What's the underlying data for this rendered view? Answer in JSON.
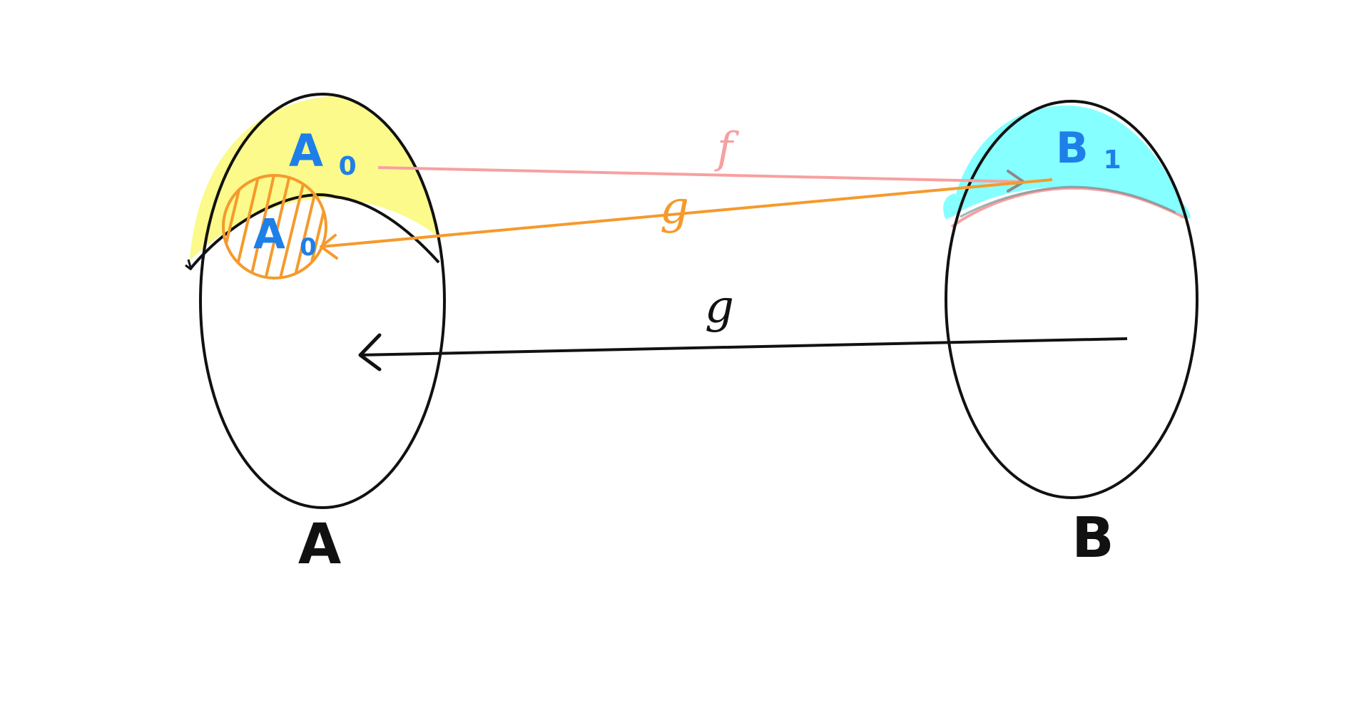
{
  "sets": {
    "A": {
      "label": "A",
      "subset_label": "A",
      "subset_subscript": "0",
      "inner_label": "A",
      "inner_subscript": "0"
    },
    "B": {
      "label": "B",
      "subset_label": "B",
      "subset_subscript": "1"
    }
  },
  "maps": {
    "f": {
      "label": "f",
      "color": "#f7a0a0"
    },
    "g_subset": {
      "label": "g",
      "color": "#f59a2c"
    },
    "g_main": {
      "label": "g",
      "color": "#111111"
    }
  },
  "colors": {
    "yellow_region": "#fbfa85",
    "cyan_region": "#85ffff",
    "label_blue": "#1f7fe8",
    "orange_hatch": "#f59a2c",
    "outline": "#111111"
  }
}
